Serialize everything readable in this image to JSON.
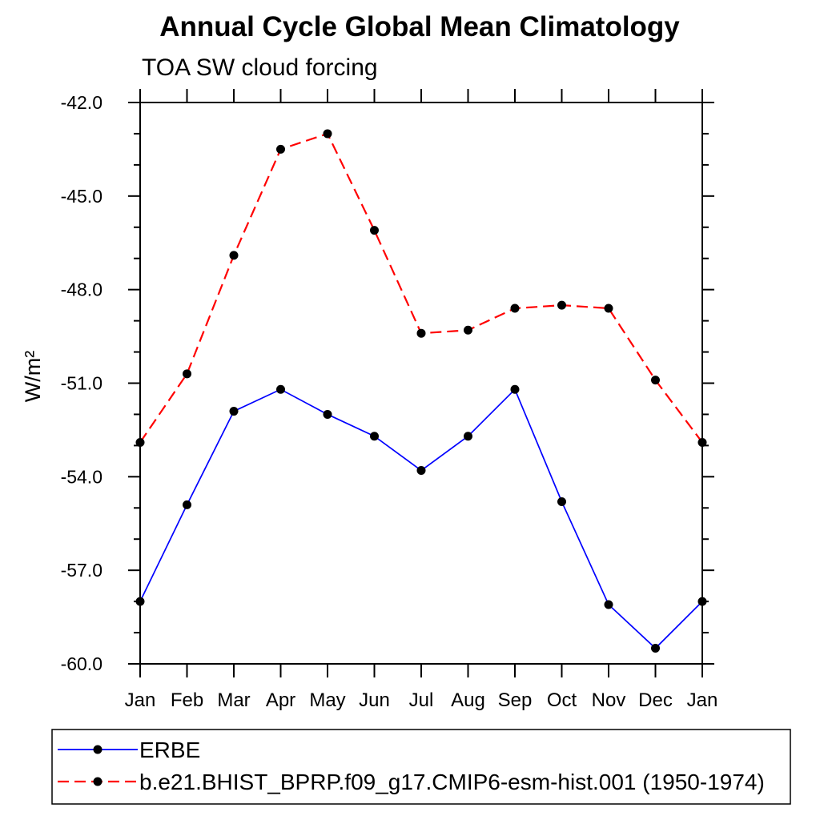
{
  "header": {
    "title": "Annual Cycle Global Mean Climatology",
    "subtitle": "TOA SW cloud forcing"
  },
  "axes": {
    "y_label": "W/m²",
    "y_ticks": [
      "-42.0",
      "-45.0",
      "-48.0",
      "-51.0",
      "-54.0",
      "-57.0",
      "-60.0"
    ],
    "x_tick_labels": [
      "Jan",
      "Feb",
      "Mar",
      "Apr",
      "May",
      "Jun",
      "Jul",
      "Aug",
      "Sep",
      "Oct",
      "Nov",
      "Dec",
      "Jan"
    ]
  },
  "legend": {
    "entries": [
      {
        "label": "ERBE"
      },
      {
        "label": "b.e21.BHIST_BPRP.f09_g17.CMIP6-esm-hist.001 (1950-1974)"
      }
    ]
  },
  "colors": {
    "erbe_line": "#0000ff",
    "model_line": "#ff0000",
    "marker": "#000000",
    "axis": "#000000",
    "background": "#ffffff"
  },
  "chart_data": {
    "type": "line",
    "title": "Annual Cycle Global Mean Climatology",
    "subtitle": "TOA SW cloud forcing",
    "ylabel": "W/m²",
    "x": [
      "Jan",
      "Feb",
      "Mar",
      "Apr",
      "May",
      "Jun",
      "Jul",
      "Aug",
      "Sep",
      "Oct",
      "Nov",
      "Dec",
      "Jan"
    ],
    "ylim": [
      -60.0,
      -42.0
    ],
    "y_major_ticks": [
      -42,
      -45,
      -48,
      -51,
      -54,
      -57,
      -60
    ],
    "y_minor_step": 1,
    "grid": false,
    "legend_position": "bottom-left-box",
    "series": [
      {
        "name": "ERBE",
        "color": "#0000ff",
        "style": "solid",
        "marker": "circle",
        "marker_color": "#000000",
        "values": [
          -58.0,
          -54.9,
          -51.9,
          -51.2,
          -52.0,
          -52.7,
          -53.8,
          -52.7,
          -51.2,
          -54.8,
          -58.1,
          -59.5,
          -58.0
        ]
      },
      {
        "name": "b.e21.BHIST_BPRP.f09_g17.CMIP6-esm-hist.001 (1950-1974)",
        "color": "#ff0000",
        "style": "dashed",
        "marker": "circle",
        "marker_color": "#000000",
        "values": [
          -52.9,
          -50.7,
          -46.9,
          -43.5,
          -43.0,
          -46.1,
          -49.4,
          -49.3,
          -48.6,
          -48.5,
          -48.6,
          -50.9,
          -52.9
        ]
      }
    ]
  }
}
